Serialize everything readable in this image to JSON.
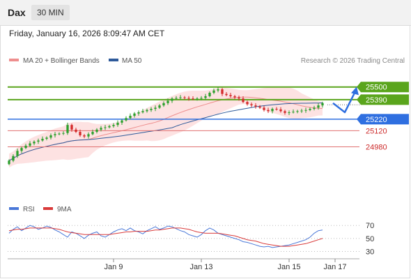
{
  "header": {
    "symbol": "Dax",
    "interval": "30 MIN"
  },
  "datetime": "Friday, January 16, 2026 8:09:47 AM CET",
  "credit": "Research © 2026 Trading Central",
  "colors": {
    "up": "#2ca02c",
    "down": "#d42a2a",
    "resistance": "#5aa51c",
    "pivot": "#2f6fe0",
    "support": "#e07070",
    "ma20": "#ee8e8e",
    "bollinger": "#fde2e2",
    "ma50": "#2e5a9a",
    "rsi": "#4a78d8",
    "rsi_ma": "#d93a3a",
    "arrow": "#2f6fe0"
  },
  "chart_data": [
    {
      "type": "candlestick",
      "title": "",
      "legend": [
        {
          "label": "MA 20 + Bollinger Bands",
          "color": "#ee8e8e"
        },
        {
          "label": "MA 50",
          "color": "#2e5a9a"
        }
      ],
      "legend_position": "top-left",
      "ylim": [
        24680,
        25650
      ],
      "x_tick_labels": [
        "Jan 9",
        "Jan 13",
        "Jan 15",
        "Jan 17"
      ],
      "x_tick_positions": [
        25,
        46,
        67,
        78
      ],
      "x_range": [
        0,
        82
      ],
      "levels": [
        {
          "value": 25500,
          "label": "25500",
          "kind": "resistance"
        },
        {
          "value": 25390,
          "label": "25390",
          "kind": "resistance"
        },
        {
          "value": 25220,
          "label": "25220",
          "kind": "pivot"
        },
        {
          "value": 25120,
          "label": "25120",
          "kind": "support"
        },
        {
          "value": 24980,
          "label": "24980",
          "kind": "support"
        }
      ],
      "closes": [
        24860,
        24900,
        24945,
        24970,
        24990,
        25010,
        25025,
        25035,
        25050,
        25060,
        25080,
        25090,
        25095,
        25100,
        25170,
        25130,
        25110,
        25080,
        25070,
        25090,
        25110,
        25130,
        25145,
        25150,
        25160,
        25170,
        25190,
        25210,
        25230,
        25250,
        25270,
        25280,
        25290,
        25300,
        25310,
        25320,
        25340,
        25360,
        25380,
        25400,
        25405,
        25410,
        25405,
        25400,
        25395,
        25400,
        25405,
        25420,
        25450,
        25470,
        25480,
        25440,
        25430,
        25420,
        25410,
        25400,
        25370,
        25350,
        25340,
        25330,
        25320,
        25300,
        25290,
        25310,
        25305,
        25290,
        25275,
        25280,
        25285,
        25290,
        25295,
        25300,
        25310,
        25320,
        25340,
        25360
      ],
      "forecast": [
        25360,
        25280,
        25460
      ],
      "dotted_price": 25345
    },
    {
      "type": "line",
      "title": "",
      "legend": [
        {
          "label": "RSI",
          "color": "#4a78d8"
        },
        {
          "label": "9MA",
          "color": "#d93a3a"
        }
      ],
      "legend_position": "top-left",
      "ylim": [
        22,
        82
      ],
      "y_ticks": [
        70,
        50,
        30
      ],
      "series": [
        {
          "name": "RSI",
          "values": [
            58,
            64,
            68,
            62,
            66,
            70,
            68,
            64,
            66,
            69,
            67,
            63,
            60,
            56,
            52,
            60,
            58,
            54,
            50,
            55,
            58,
            60,
            54,
            52,
            56,
            60,
            63,
            65,
            62,
            66,
            62,
            60,
            57,
            62,
            65,
            68,
            64,
            66,
            69,
            68,
            65,
            62,
            60,
            56,
            54,
            52,
            56,
            62,
            66,
            63,
            58,
            56,
            54,
            52,
            50,
            48,
            45,
            44,
            42,
            40,
            38,
            37,
            38,
            36,
            37,
            38,
            39,
            40,
            42,
            44,
            46,
            48,
            52,
            58,
            62,
            63
          ]
        },
        {
          "name": "9MA",
          "values": [
            62,
            63,
            64,
            64,
            65,
            66,
            66,
            66,
            66,
            66,
            66,
            65,
            64,
            62,
            60,
            59,
            58,
            57,
            56,
            56,
            56,
            56,
            56,
            56,
            56,
            57,
            58,
            59,
            60,
            60,
            61,
            61,
            61,
            61,
            62,
            63,
            63,
            64,
            65,
            66,
            66,
            66,
            65,
            64,
            62,
            60,
            59,
            58,
            58,
            58,
            58,
            57,
            56,
            55,
            54,
            52,
            50,
            48,
            47,
            46,
            44,
            42,
            41,
            40,
            39,
            38,
            38,
            38,
            39,
            40,
            41,
            42,
            44,
            46,
            48,
            50
          ]
        }
      ]
    }
  ]
}
